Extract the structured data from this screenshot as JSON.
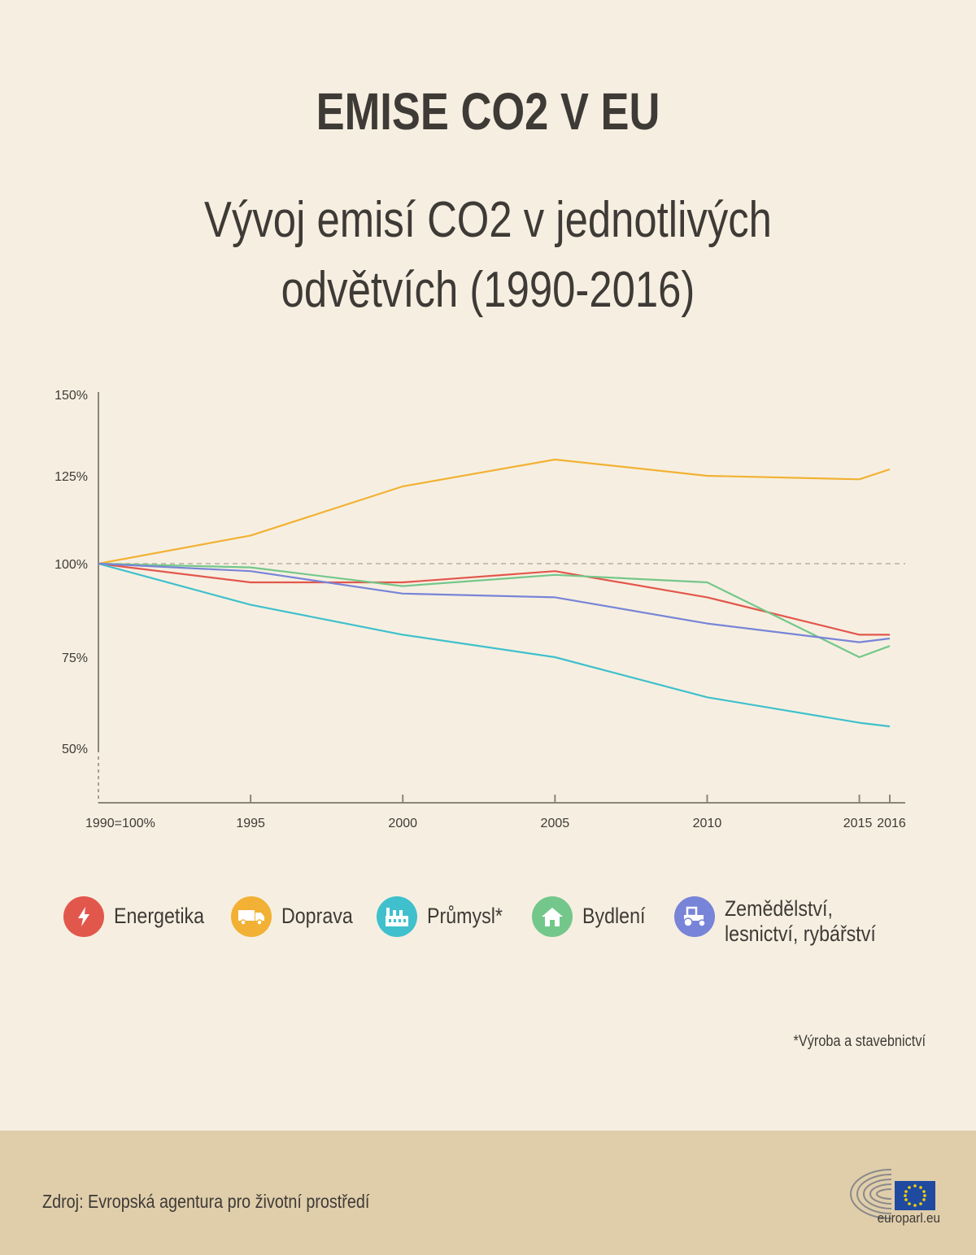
{
  "header": {
    "title": "EMISE CO2 V EU",
    "subtitle_line1": "Vývoj emisí CO2 v jednotlivých",
    "subtitle_line2": "odvětvích (1990-2016)"
  },
  "chart_data": {
    "type": "line",
    "x": [
      1990,
      1995,
      2000,
      2005,
      2010,
      2015,
      2016
    ],
    "x_tick_labels": [
      "1990=100%",
      "1995",
      "2000",
      "2005",
      "2010",
      "2015",
      "2016"
    ],
    "y_tick_values": [
      150,
      125,
      100,
      75,
      50
    ],
    "y_tick_labels": [
      "150%",
      "125%",
      "100%",
      "75%",
      "50%"
    ],
    "baseline": 100,
    "series": [
      {
        "name": "Energetika",
        "color": "#e2574c",
        "icon": "lightning-icon",
        "values": [
          100,
          95,
          95,
          98,
          91,
          81,
          81
        ]
      },
      {
        "name": "Doprava",
        "color": "#f2b134",
        "icon": "truck-icon",
        "values": [
          100,
          108,
          122,
          130,
          125,
          124,
          127
        ]
      },
      {
        "name": "Průmysl*",
        "color": "#3fc0cc",
        "icon": "factory-icon",
        "values": [
          100,
          89,
          81,
          75,
          64,
          57,
          56
        ]
      },
      {
        "name": "Bydlení",
        "color": "#74c78a",
        "icon": "house-icon",
        "values": [
          100,
          99,
          94,
          97,
          95,
          75,
          78
        ]
      },
      {
        "name": "Zemědělství, lesnictví, rybářství",
        "color": "#7884d8",
        "icon": "tractor-icon",
        "values": [
          100,
          98,
          92,
          91,
          84,
          79,
          80
        ]
      }
    ],
    "grid": false,
    "legend_position": "bottom"
  },
  "footnote": "*Výroba a stavebnictví",
  "footer": {
    "source": "Zdroj: Evropská agentura pro životní prostředí",
    "logo_text": "europarl.eu"
  }
}
